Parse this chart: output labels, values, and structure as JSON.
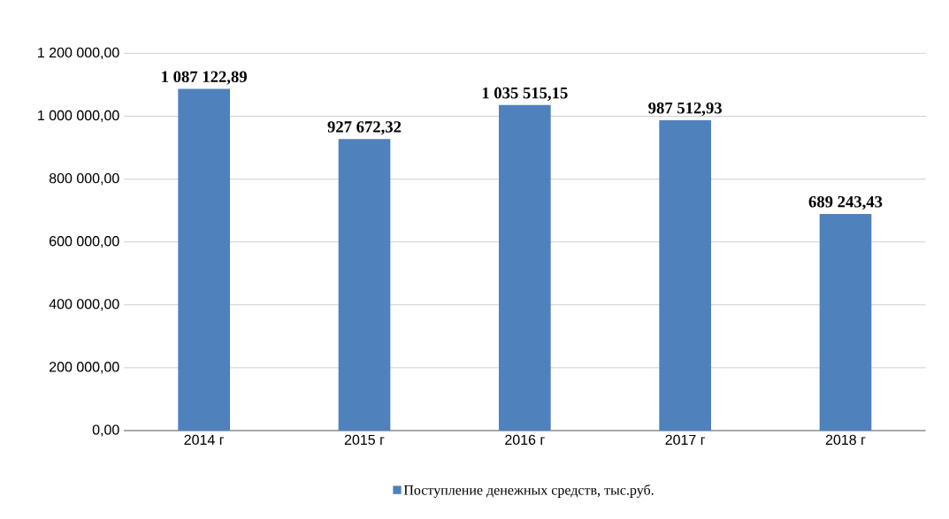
{
  "chart_data": {
    "type": "bar",
    "categories": [
      "2014 г",
      "2015 г",
      "2016 г",
      "2017 г",
      "2018 г"
    ],
    "series": [
      {
        "name": "Поступление денежных средств, тыс.руб.",
        "color": "#4f81bd",
        "values": [
          1087122.89,
          927672.32,
          1035515.15,
          987512.93,
          689243.43
        ],
        "value_labels": [
          "1 087 122,89",
          "927 672,32",
          "1 035 515,15",
          "987 512,93",
          "689 243,43"
        ]
      }
    ],
    "ylim": [
      0,
      1200000
    ],
    "yticks": [
      {
        "value": 0,
        "label": "0,00"
      },
      {
        "value": 200000,
        "label": "200 000,00"
      },
      {
        "value": 400000,
        "label": "400 000,00"
      },
      {
        "value": 600000,
        "label": "600 000,00"
      },
      {
        "value": 800000,
        "label": "800 000,00"
      },
      {
        "value": 1000000,
        "label": "1 000 000,00"
      },
      {
        "value": 1200000,
        "label": "1 200 000,00"
      }
    ],
    "grid": "y",
    "legend": "bottom"
  }
}
